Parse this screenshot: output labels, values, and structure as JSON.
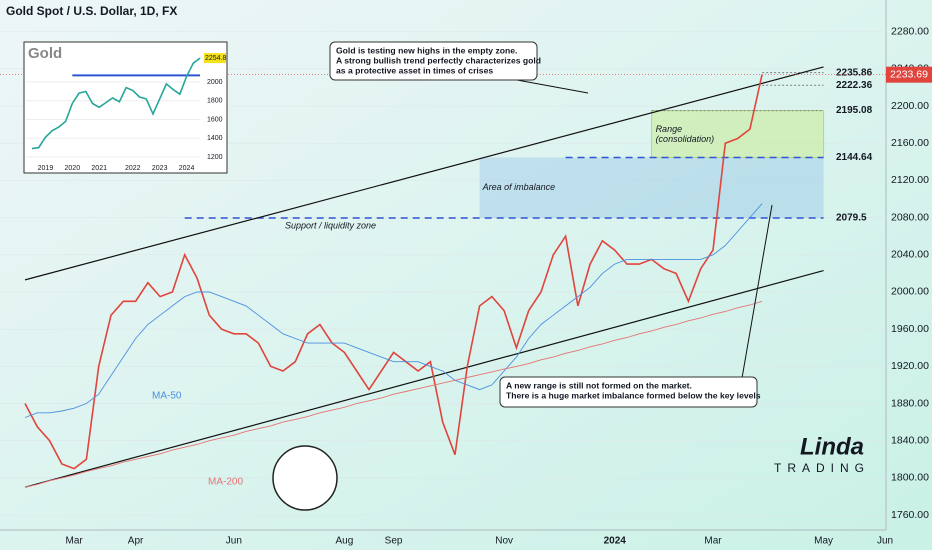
{
  "chart_data": [
    {
      "type": "line",
      "title": "Gold Spot / U.S. Dollar, 1D, FX",
      "categories": [
        null,
        null,
        null,
        null,
        "Mar",
        null,
        null,
        null,
        null,
        "Apr",
        null,
        null,
        null,
        null,
        null,
        null,
        null,
        "Jun",
        null,
        null,
        null,
        null,
        null,
        null,
        null,
        null,
        "Aug",
        null,
        null,
        null,
        "Sep",
        null,
        null,
        null,
        null,
        null,
        null,
        null,
        null,
        "Nov",
        null,
        null,
        null,
        null,
        null,
        null,
        null,
        null,
        "2024",
        null,
        null,
        null,
        null,
        null,
        null,
        null,
        "Mar",
        null,
        null,
        null,
        null,
        null,
        null,
        null,
        null,
        "May",
        null,
        null,
        null,
        null,
        "Jun"
      ],
      "series": [
        {
          "color": "#e0443c",
          "values": [
            1880,
            1855,
            1840,
            1815,
            1810,
            1820,
            1920,
            1975,
            1990,
            1990,
            2010,
            1995,
            2000,
            2040,
            2015,
            1975,
            1960,
            1955,
            1955,
            1945,
            1920,
            1915,
            1925,
            1955,
            1965,
            1945,
            1935,
            1915,
            1895,
            1915,
            1935,
            1925,
            1915,
            1925,
            1860,
            1825,
            1920,
            1985,
            1995,
            1980,
            1940,
            1980,
            2000,
            2040,
            2060,
            1985,
            2030,
            2055,
            2045,
            2030,
            2030,
            2035,
            2025,
            2020,
            1990,
            2025,
            2045,
            2160,
            2165,
            2175,
            2234,
            null,
            null,
            null,
            null,
            null,
            null,
            null,
            null,
            null,
            null
          ]
        },
        {
          "name": "MA-50",
          "color": "#4a90e2",
          "values": [
            1865,
            1870,
            1870,
            1872,
            1875,
            1880,
            1890,
            1910,
            1930,
            1950,
            1965,
            1975,
            1985,
            1995,
            2000,
            2000,
            1995,
            1990,
            1985,
            1975,
            1965,
            1955,
            1950,
            1945,
            1945,
            1945,
            1945,
            1940,
            1935,
            1930,
            1925,
            1925,
            1925,
            1920,
            1915,
            1905,
            1900,
            1895,
            1900,
            1915,
            1930,
            1950,
            1965,
            1975,
            1985,
            1995,
            2005,
            2020,
            2030,
            2035,
            2035,
            2035,
            2035,
            2035,
            2035,
            2035,
            2040,
            2050,
            2065,
            2080,
            2095,
            null,
            null,
            null,
            null,
            null,
            null,
            null,
            null,
            null,
            null
          ]
        },
        {
          "name": "MA-200",
          "color": "#e57373",
          "values": [
            1790,
            1793,
            1797,
            1800,
            1803,
            1807,
            1810,
            1813,
            1817,
            1820,
            1823,
            1826,
            1830,
            1833,
            1836,
            1840,
            1843,
            1846,
            1850,
            1853,
            1856,
            1860,
            1863,
            1866,
            1870,
            1873,
            1876,
            1880,
            1883,
            1886,
            1890,
            1893,
            1896,
            1899,
            1902,
            1905,
            1908,
            1911,
            1914,
            1917,
            1920,
            1923,
            1927,
            1930,
            1934,
            1937,
            1941,
            1944,
            1948,
            1951,
            1955,
            1958,
            1962,
            1965,
            1969,
            1972,
            1976,
            1979,
            1983,
            1986,
            1990,
            null,
            null,
            null,
            null,
            null,
            null,
            null,
            null,
            null,
            null
          ]
        }
      ],
      "ylim": [
        1744,
        2314
      ],
      "yticks": [
        {
          "value": 1760,
          "label": "1760.00"
        },
        {
          "value": 1800,
          "label": "1800.00"
        },
        {
          "value": 1840,
          "label": "1840.00"
        },
        {
          "value": 1880,
          "label": "1880.00"
        },
        {
          "value": 1920,
          "label": "1920.00"
        },
        {
          "value": 1960,
          "label": "1960.00"
        },
        {
          "value": 2000,
          "label": "2000.00"
        },
        {
          "value": 2040,
          "label": "2040.00"
        },
        {
          "value": 2080,
          "label": "2080.00"
        },
        {
          "value": 2120,
          "label": "2120.00"
        },
        {
          "value": 2160,
          "label": "2160.00"
        },
        {
          "value": 2200,
          "label": "2200.00"
        },
        {
          "value": 2240,
          "label": "2240.00"
        },
        {
          "value": 2280,
          "label": "2280.00"
        }
      ],
      "last_price": 2233.69,
      "levels": [
        2235.86,
        2222.36,
        2195.08,
        2144.64,
        2079.5
      ],
      "trendlines": [
        {
          "x": [
            0,
            65
          ],
          "y": [
            2013,
            2242
          ]
        },
        {
          "x": [
            0,
            65
          ],
          "y": [
            1790,
            2023
          ]
        }
      ],
      "zones": [
        {
          "label": [
            "Area of imbalance"
          ],
          "range": [
            2079.5,
            2144.64
          ]
        },
        {
          "label": [
            "Range",
            "(consolidation)"
          ],
          "range": [
            2144.64,
            2195.08
          ]
        }
      ],
      "support_label": "Support / liquidity zone",
      "callouts": [
        [
          "Gold is testing new highs in the empty zone.",
          "A strong bullish trend perfectly characterizes gold",
          "as a protective asset in times of crises"
        ],
        [
          "A new range is still not formed on the market.",
          "There is a huge market imbalance formed below the key levels"
        ]
      ],
      "logo": [
        "Linda",
        "TRADING"
      ]
    },
    {
      "type": "line",
      "title": "Gold",
      "categories": [
        null,
        null,
        "2019",
        null,
        null,
        null,
        "2020",
        null,
        null,
        null,
        "2021",
        null,
        null,
        null,
        null,
        "2022",
        null,
        null,
        null,
        "2023",
        null,
        null,
        null,
        "2024",
        null,
        null
      ],
      "values": [
        1290,
        1300,
        1410,
        1480,
        1520,
        1580,
        1770,
        1880,
        1900,
        1770,
        1730,
        1780,
        1830,
        1790,
        1940,
        1910,
        1840,
        1820,
        1660,
        1820,
        1980,
        1920,
        1870,
        2060,
        2200,
        2254.8
      ],
      "color": "#26a69a",
      "ylim": [
        1040,
        2405
      ],
      "yticks": [
        1200,
        1400,
        1600,
        1800,
        2000
      ],
      "level": 2070
    }
  ]
}
